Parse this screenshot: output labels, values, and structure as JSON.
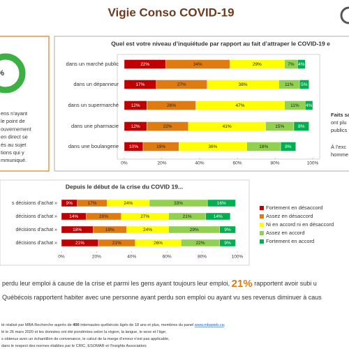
{
  "title": "Vigie Conso COVID-19",
  "left_panel": {
    "donut_label": "%",
    "text": [
      "ens n'ayant",
      "le point de",
      "ouvernement",
      "en direct se",
      "és au sujet",
      "tions qui y",
      "mmuniqué."
    ]
  },
  "chart_data": [
    {
      "type": "bar",
      "orientation": "horizontal",
      "stacked": true,
      "title": "Quel est votre niveau d’inquiétude par rapport au fait d’attraper le COVID-19 e",
      "categories": [
        "dans un marché public",
        "dans un dépanneur",
        "dans un supermarché",
        "dans une pharmacie",
        "dans une boulangerie"
      ],
      "series": [
        {
          "color": "#c00000",
          "values": [
            22,
            17,
            12,
            12,
            10
          ],
          "value_labels": [
            "22%",
            "17%",
            "12%",
            "12%",
            "10%"
          ]
        },
        {
          "color": "#e07b10",
          "values": [
            34,
            27,
            26,
            22,
            19
          ],
          "value_labels": [
            "34%",
            "27%",
            "26%",
            "22%",
            "19%"
          ]
        },
        {
          "color": "#ffff00",
          "values": [
            29,
            38,
            47,
            41,
            36
          ],
          "value_labels": [
            "29%",
            "38%",
            "47%",
            "41%",
            "36%"
          ]
        },
        {
          "color": "#92d050",
          "values": [
            7,
            11,
            11,
            15,
            18
          ],
          "value_labels": [
            "7%",
            "11%",
            "11%",
            "15%",
            "18%"
          ]
        },
        {
          "color": "#00b050",
          "values": [
            4,
            5,
            4,
            8,
            8
          ],
          "value_labels": [
            "4%",
            "5%",
            "4%",
            "8%",
            "8%"
          ]
        }
      ],
      "xlim": [
        0,
        100
      ],
      "xticks": [
        {
          "value": 0,
          "label": "0%"
        },
        {
          "value": 20,
          "label": "20%"
        },
        {
          "value": 40,
          "label": "40%"
        },
        {
          "value": 60,
          "label": "60%"
        },
        {
          "value": 80,
          "label": "80%"
        },
        {
          "value": 100,
          "label": "100%"
        }
      ]
    },
    {
      "type": "bar",
      "orientation": "horizontal",
      "stacked": true,
      "title": "Depuis le début de la crise du COVID 19...",
      "categories": [
        "s décisions d’achat »",
        "décisions d’achat »",
        "décisions d’achat »",
        "décisions d’achat »"
      ],
      "series": [
        {
          "name": "Fortement en désaccord",
          "color": "#c00000",
          "values": [
            9,
            14,
            18,
            21
          ],
          "value_labels": [
            "9%",
            "14%",
            "18%",
            "21%"
          ]
        },
        {
          "name": "Assez en désaccord",
          "color": "#e07b10",
          "values": [
            17,
            20,
            19,
            21
          ],
          "value_labels": [
            "17%",
            "20%",
            "19%",
            "21%"
          ]
        },
        {
          "name": "Ni en accord ni en désaccord",
          "color": "#ffff00",
          "values": [
            24,
            27,
            24,
            26
          ],
          "value_labels": [
            "24%",
            "27%",
            "24%",
            "26%"
          ]
        },
        {
          "name": "Assez en accord",
          "color": "#92d050",
          "values": [
            33,
            21,
            29,
            22
          ],
          "value_labels": [
            "33%",
            "21%",
            "29%",
            "22%"
          ]
        },
        {
          "name": "Fortement en accord",
          "color": "#00b050",
          "values": [
            16,
            14,
            9,
            9
          ],
          "value_labels": [
            "16%",
            "14%",
            "9%",
            "9%"
          ]
        }
      ],
      "xlim": [
        0,
        100
      ],
      "xticks": [
        {
          "value": 0,
          "label": "0%"
        },
        {
          "value": 20,
          "label": "20%"
        },
        {
          "value": 40,
          "label": "40%"
        },
        {
          "value": 60,
          "label": "60%"
        },
        {
          "value": 80,
          "label": "80%"
        },
        {
          "value": 100,
          "label": "100%"
        }
      ],
      "legend": "right"
    }
  ],
  "side_text": [
    "Faits sa",
    "ont plu",
    "publics",
    "À l’exc",
    "homme"
  ],
  "findings": [
    [
      "perdu leur emploi à cause de la crise et parmi les gens ayant toujours leur emploi, ",
      "21%",
      " rapportent avoir subi u"
    ],
    [
      "Québécois rapportent habiter avec une personne ayant perdu son  emploi ou ayant vu ses revenus diminuer à caus"
    ]
  ],
  "footnotes": [
    [
      "té réalisé  par MBA Recherche auprès de ",
      "400",
      " internautes québécois âgés de 18 ans et plus, membres du panel ",
      "www.mbaweb.ca",
      ";"
    ],
    [
      "lé le 26 mars 2020 et les données ont été pondérées selon la région, la langue, le sexe et l’âge;"
    ],
    [
      "s obtenus avec un échantillon de convenance, le calcul de la marge d’erreur n’est pas applicable,"
    ],
    [
      "dans le respect des normes établies par le CRIC, ESOMAR et l’Insights Association;"
    ]
  ]
}
